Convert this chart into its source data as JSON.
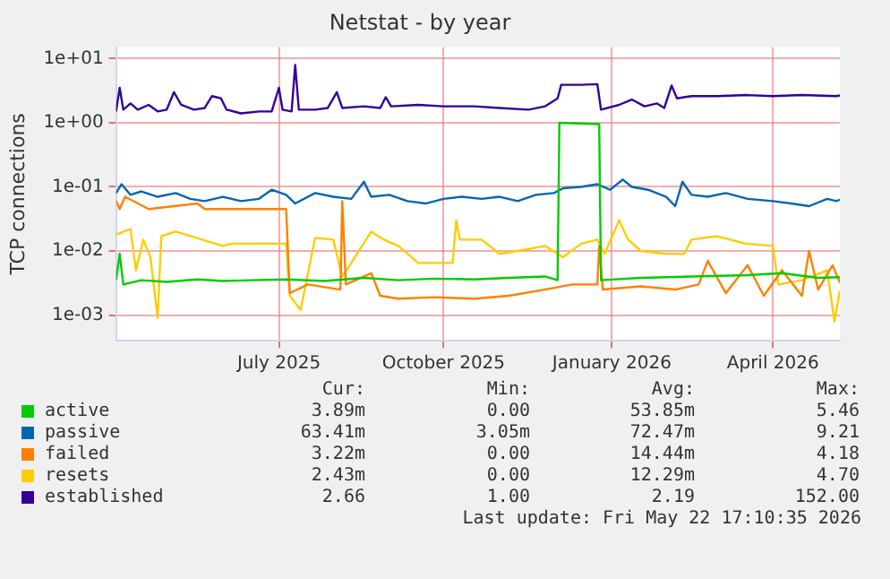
{
  "chart_data": {
    "type": "line",
    "title": "Netstat - by year",
    "ylabel": "TCP connections",
    "log": "y",
    "grid": true,
    "legend": "bottom",
    "marker": "none",
    "line_style": "solid",
    "xlim": [
      "2025-04-17",
      "2026-05-22"
    ],
    "xticks": [
      {
        "value": "2025-07-16",
        "label": "July 2025"
      },
      {
        "value": "2025-10-15",
        "label": "October 2025"
      },
      {
        "value": "2026-01-16",
        "label": "January 2026"
      },
      {
        "value": "2026-04-15",
        "label": "April 2026"
      }
    ],
    "ylim": [
      0.0004,
      15
    ],
    "yticks": [
      {
        "value": 0.001,
        "label": "1e-03"
      },
      {
        "value": 0.01,
        "label": "1e-02"
      },
      {
        "value": 0.1,
        "label": "1e-01"
      },
      {
        "value": 1,
        "label": "1e+00"
      },
      {
        "value": 10,
        "label": "1e+01"
      }
    ],
    "annotations": [
      "Cur:",
      "Min:",
      "Avg:",
      "Max:",
      "3.89m",
      "0.00",
      "53.85m",
      "5.46",
      "63.41m",
      "3.05m",
      "72.47m",
      "9.21",
      "3.22m",
      "0.00",
      "14.44m",
      "4.18",
      "2.43m",
      "0.00",
      "12.29m",
      "4.70",
      "2.66",
      "1.00",
      "2.19",
      "152.00",
      "Last update: Fri May 22 17:10:35 2026"
    ],
    "series": [
      {
        "name": "active",
        "color": "#00cc00",
        "x": [
          "2025-04-17",
          "2025-04-19",
          "2025-04-21",
          "2025-05-01",
          "2025-05-15",
          "2025-06-01",
          "2025-06-15",
          "2025-07-01",
          "2025-07-20",
          "2025-08-10",
          "2025-09-01",
          "2025-09-20",
          "2025-10-10",
          "2025-11-01",
          "2025-11-20",
          "2025-12-10",
          "2025-12-17",
          "2025-12-18",
          "2026-01-09",
          "2026-01-10",
          "2026-02-01",
          "2026-03-01",
          "2026-04-01",
          "2026-04-20",
          "2026-05-10",
          "2026-05-22"
        ],
        "values": [
          0.0035,
          0.009,
          0.003,
          0.0035,
          0.0033,
          0.0036,
          0.0034,
          0.0035,
          0.0036,
          0.0034,
          0.0038,
          0.0035,
          0.0037,
          0.0036,
          0.0038,
          0.004,
          0.0035,
          1.0,
          0.95,
          0.0035,
          0.0038,
          0.004,
          0.0042,
          0.0045,
          0.0038,
          0.0039
        ]
      },
      {
        "name": "passive",
        "color": "#0066b3",
        "x": [
          "2025-04-17",
          "2025-04-20",
          "2025-04-25",
          "2025-05-01",
          "2025-05-10",
          "2025-05-20",
          "2025-05-28",
          "2025-06-05",
          "2025-06-15",
          "2025-06-25",
          "2025-07-05",
          "2025-07-12",
          "2025-07-20",
          "2025-07-25",
          "2025-08-05",
          "2025-08-15",
          "2025-08-25",
          "2025-09-01",
          "2025-09-05",
          "2025-09-15",
          "2025-09-25",
          "2025-10-05",
          "2025-10-15",
          "2025-10-25",
          "2025-11-05",
          "2025-11-15",
          "2025-11-25",
          "2025-12-05",
          "2025-12-15",
          "2025-12-20",
          "2025-12-30",
          "2026-01-08",
          "2026-01-15",
          "2026-01-22",
          "2026-01-27",
          "2026-02-05",
          "2026-02-15",
          "2026-02-20",
          "2026-02-24",
          "2026-03-01",
          "2026-03-10",
          "2026-03-20",
          "2026-04-01",
          "2026-04-15",
          "2026-04-25",
          "2026-05-05",
          "2026-05-15",
          "2026-05-20",
          "2026-05-22"
        ],
        "values": [
          0.08,
          0.11,
          0.075,
          0.085,
          0.07,
          0.08,
          0.065,
          0.06,
          0.07,
          0.06,
          0.065,
          0.09,
          0.075,
          0.055,
          0.08,
          0.07,
          0.065,
          0.12,
          0.07,
          0.075,
          0.06,
          0.055,
          0.065,
          0.07,
          0.065,
          0.07,
          0.06,
          0.075,
          0.08,
          0.095,
          0.1,
          0.11,
          0.09,
          0.13,
          0.1,
          0.09,
          0.07,
          0.05,
          0.12,
          0.075,
          0.07,
          0.08,
          0.065,
          0.06,
          0.055,
          0.05,
          0.065,
          0.06,
          0.063
        ]
      },
      {
        "name": "failed",
        "color": "#ff8000",
        "x": [
          "2025-04-17",
          "2025-04-19",
          "2025-04-22",
          "2025-05-05",
          "2025-06-01",
          "2025-06-05",
          "2025-07-20",
          "2025-07-22",
          "2025-08-01",
          "2025-08-19",
          "2025-08-20",
          "2025-08-22",
          "2025-09-05",
          "2025-09-10",
          "2025-09-20",
          "2025-10-10",
          "2025-11-01",
          "2025-11-20",
          "2025-12-10",
          "2025-12-25",
          "2026-01-08",
          "2026-01-09",
          "2026-01-11",
          "2026-02-01",
          "2026-02-20",
          "2026-03-05",
          "2026-03-10",
          "2026-03-20",
          "2026-04-01",
          "2026-04-10",
          "2026-04-20",
          "2026-05-01",
          "2026-05-05",
          "2026-05-10",
          "2026-05-18",
          "2026-05-22"
        ],
        "values": [
          0.06,
          0.045,
          0.07,
          0.045,
          0.055,
          0.045,
          0.045,
          0.0022,
          0.003,
          0.0025,
          0.06,
          0.003,
          0.0045,
          0.002,
          0.0018,
          0.0019,
          0.0018,
          0.002,
          0.0025,
          0.003,
          0.003,
          0.012,
          0.0025,
          0.0028,
          0.0025,
          0.003,
          0.007,
          0.0022,
          0.006,
          0.002,
          0.005,
          0.002,
          0.01,
          0.0025,
          0.006,
          0.0032
        ]
      },
      {
        "name": "resets",
        "color": "#ffcc00",
        "x": [
          "2025-04-17",
          "2025-04-25",
          "2025-04-28",
          "2025-05-02",
          "2025-05-06",
          "2025-05-10",
          "2025-05-12",
          "2025-05-20",
          "2025-06-15",
          "2025-06-20",
          "2025-07-20",
          "2025-07-22",
          "2025-07-28",
          "2025-08-05",
          "2025-08-15",
          "2025-08-20",
          "2025-08-25",
          "2025-09-05",
          "2025-09-12",
          "2025-09-20",
          "2025-10-01",
          "2025-10-20",
          "2025-10-22",
          "2025-10-24",
          "2025-11-05",
          "2025-11-15",
          "2025-11-25",
          "2025-12-10",
          "2025-12-20",
          "2025-12-30",
          "2026-01-08",
          "2026-01-12",
          "2026-01-20",
          "2026-01-25",
          "2026-02-01",
          "2026-02-15",
          "2026-02-25",
          "2026-03-01",
          "2026-03-15",
          "2026-03-31",
          "2026-04-15",
          "2026-04-18",
          "2026-05-01",
          "2026-05-15",
          "2026-05-19",
          "2026-05-22"
        ],
        "values": [
          0.018,
          0.022,
          0.005,
          0.015,
          0.008,
          0.0009,
          0.017,
          0.02,
          0.012,
          0.013,
          0.013,
          0.002,
          0.0012,
          0.016,
          0.015,
          0.004,
          0.0065,
          0.02,
          0.015,
          0.012,
          0.0065,
          0.0065,
          0.03,
          0.015,
          0.015,
          0.009,
          0.01,
          0.012,
          0.008,
          0.013,
          0.015,
          0.009,
          0.03,
          0.015,
          0.01,
          0.009,
          0.009,
          0.015,
          0.017,
          0.013,
          0.012,
          0.003,
          0.0035,
          0.005,
          0.0008,
          0.0024
        ]
      },
      {
        "name": "established",
        "color": "#330099",
        "x": [
          "2025-04-17",
          "2025-04-19",
          "2025-04-21",
          "2025-04-25",
          "2025-04-29",
          "2025-05-05",
          "2025-05-10",
          "2025-05-15",
          "2025-05-19",
          "2025-05-23",
          "2025-05-30",
          "2025-06-05",
          "2025-06-09",
          "2025-06-14",
          "2025-06-17",
          "2025-06-25",
          "2025-07-05",
          "2025-07-12",
          "2025-07-16",
          "2025-07-18",
          "2025-07-23",
          "2025-07-25",
          "2025-07-27",
          "2025-08-05",
          "2025-08-12",
          "2025-08-17",
          "2025-08-20",
          "2025-09-01",
          "2025-09-10",
          "2025-09-13",
          "2025-09-16",
          "2025-10-01",
          "2025-10-15",
          "2025-11-01",
          "2025-11-15",
          "2025-12-01",
          "2025-12-10",
          "2025-12-17",
          "2025-12-19",
          "2025-12-30",
          "2026-01-08",
          "2026-01-10",
          "2026-01-20",
          "2026-01-27",
          "2026-02-03",
          "2026-02-10",
          "2026-02-14",
          "2026-02-18",
          "2026-02-21",
          "2026-03-01",
          "2026-03-15",
          "2026-04-01",
          "2026-04-15",
          "2026-05-01",
          "2026-05-20",
          "2026-05-22"
        ],
        "values": [
          1.5,
          3.5,
          1.6,
          2.0,
          1.6,
          1.9,
          1.5,
          1.6,
          3.0,
          1.9,
          1.6,
          1.7,
          2.6,
          2.4,
          1.6,
          1.4,
          1.5,
          1.5,
          3.5,
          1.6,
          1.5,
          8.0,
          1.6,
          1.6,
          1.7,
          3.0,
          1.7,
          1.8,
          1.7,
          2.5,
          1.8,
          1.9,
          1.8,
          1.8,
          1.7,
          1.6,
          1.8,
          2.4,
          3.9,
          3.9,
          4.0,
          1.6,
          1.9,
          2.3,
          1.8,
          2.0,
          1.7,
          3.8,
          2.4,
          2.6,
          2.6,
          2.7,
          2.6,
          2.7,
          2.6,
          2.66
        ]
      }
    ]
  }
}
